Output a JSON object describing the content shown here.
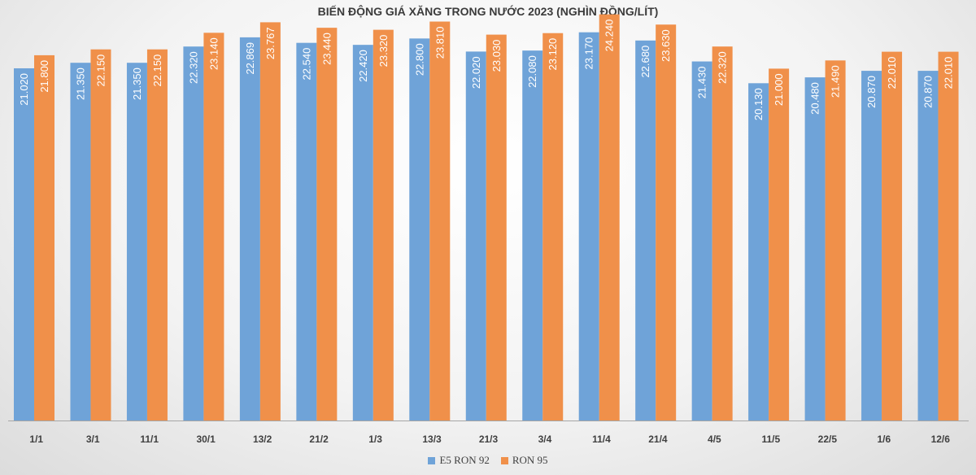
{
  "chart_data": {
    "type": "bar",
    "title": "BIẾN ĐỘNG GIÁ XĂNG TRONG NƯỚC 2023 (NGHÌN ĐỒNG/LÍT)",
    "categories": [
      "1/1",
      "3/1",
      "11/1",
      "30/1",
      "13/2",
      "21/2",
      "1/3",
      "13/3",
      "21/3",
      "3/4",
      "11/4",
      "21/4",
      "4/5",
      "11/5",
      "22/5",
      "1/6",
      "12/6"
    ],
    "series": [
      {
        "name": "E5 RON 92",
        "color": "#6fa3d8",
        "values": [
          21.02,
          21.35,
          21.35,
          22.32,
          22.869,
          22.54,
          22.42,
          22.8,
          22.02,
          22.08,
          23.17,
          22.68,
          21.43,
          20.13,
          20.48,
          20.87,
          20.87
        ],
        "labels": [
          "21.020",
          "21.350",
          "21.350",
          "22.320",
          "22.869",
          "22.540",
          "22.420",
          "22.800",
          "22.020",
          "22.080",
          "23.170",
          "22.680",
          "21.430",
          "20.130",
          "20.480",
          "20.870",
          "20.870"
        ]
      },
      {
        "name": "RON 95",
        "color": "#f0904a",
        "values": [
          21.8,
          22.15,
          22.15,
          23.14,
          23.767,
          23.44,
          23.32,
          23.81,
          23.03,
          23.12,
          24.24,
          23.63,
          22.32,
          21.0,
          21.49,
          22.01,
          22.01
        ],
        "labels": [
          "21.800",
          "22.150",
          "22.150",
          "23.140",
          "23.767",
          "23.440",
          "23.320",
          "23.810",
          "23.030",
          "23.120",
          "24.240",
          "23.630",
          "22.320",
          "21.000",
          "21.490",
          "22.010",
          "22.010"
        ]
      }
    ],
    "ylim": [
      0,
      25
    ],
    "grid": false,
    "legend": "bottom"
  }
}
